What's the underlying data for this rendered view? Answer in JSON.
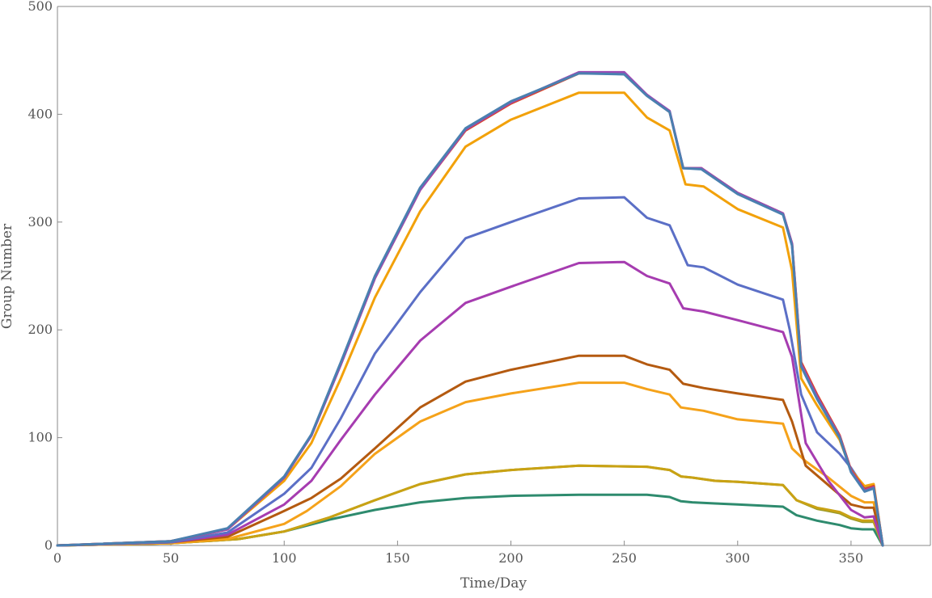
{
  "chart_data": {
    "type": "line",
    "title": "",
    "xlabel": "Time/Day",
    "ylabel": "Group Number",
    "xlim": [
      0,
      385
    ],
    "ylim": [
      0,
      500
    ],
    "xticks": [
      0,
      50,
      100,
      150,
      200,
      250,
      300,
      350
    ],
    "yticks": [
      0,
      100,
      200,
      300,
      400,
      500
    ],
    "frame": "top-left-right-bottom",
    "grid": false,
    "legend": "none",
    "series": [
      {
        "color": "#2e8b6e",
        "points": [
          [
            0,
            0
          ],
          [
            50,
            2
          ],
          [
            80,
            6
          ],
          [
            100,
            13
          ],
          [
            120,
            24
          ],
          [
            140,
            33
          ],
          [
            160,
            40
          ],
          [
            180,
            44
          ],
          [
            200,
            46
          ],
          [
            230,
            47
          ],
          [
            260,
            47
          ],
          [
            270,
            45
          ],
          [
            275,
            41
          ],
          [
            280,
            40
          ],
          [
            290,
            39
          ],
          [
            300,
            38
          ],
          [
            320,
            36
          ],
          [
            326,
            28
          ],
          [
            335,
            23
          ],
          [
            345,
            19
          ],
          [
            350,
            16
          ],
          [
            355,
            15
          ],
          [
            360,
            15
          ],
          [
            364,
            0
          ]
        ]
      },
      {
        "color": "#9a9a28",
        "points": [
          [
            0,
            0
          ],
          [
            50,
            2
          ],
          [
            80,
            6
          ],
          [
            100,
            13
          ],
          [
            120,
            26
          ],
          [
            140,
            42
          ],
          [
            160,
            57
          ],
          [
            180,
            66
          ],
          [
            200,
            70
          ],
          [
            230,
            74
          ],
          [
            260,
            73
          ],
          [
            270,
            70
          ],
          [
            275,
            64
          ],
          [
            280,
            63
          ],
          [
            290,
            60
          ],
          [
            300,
            59
          ],
          [
            320,
            56
          ],
          [
            326,
            42
          ],
          [
            335,
            34
          ],
          [
            345,
            30
          ],
          [
            350,
            25
          ],
          [
            355,
            22
          ],
          [
            360,
            22
          ],
          [
            364,
            0
          ]
        ]
      },
      {
        "color": "#c9a214",
        "points": [
          [
            0,
            0
          ],
          [
            50,
            2
          ],
          [
            80,
            6
          ],
          [
            100,
            13
          ],
          [
            120,
            26
          ],
          [
            140,
            42
          ],
          [
            160,
            57
          ],
          [
            180,
            66
          ],
          [
            200,
            70
          ],
          [
            230,
            74
          ],
          [
            260,
            73
          ],
          [
            270,
            70
          ],
          [
            275,
            64
          ],
          [
            280,
            63
          ],
          [
            290,
            60
          ],
          [
            300,
            59
          ],
          [
            320,
            56
          ],
          [
            326,
            42
          ],
          [
            335,
            35
          ],
          [
            345,
            31
          ],
          [
            350,
            26
          ],
          [
            355,
            23
          ],
          [
            360,
            23
          ],
          [
            364,
            0
          ]
        ]
      },
      {
        "color": "#f5a21a",
        "points": [
          [
            0,
            0
          ],
          [
            50,
            2
          ],
          [
            75,
            6
          ],
          [
            100,
            20
          ],
          [
            110,
            32
          ],
          [
            125,
            55
          ],
          [
            140,
            85
          ],
          [
            160,
            115
          ],
          [
            180,
            133
          ],
          [
            200,
            141
          ],
          [
            230,
            151
          ],
          [
            250,
            151
          ],
          [
            260,
            145
          ],
          [
            270,
            140
          ],
          [
            275,
            128
          ],
          [
            285,
            125
          ],
          [
            300,
            117
          ],
          [
            320,
            113
          ],
          [
            324,
            90
          ],
          [
            330,
            78
          ],
          [
            340,
            63
          ],
          [
            350,
            46
          ],
          [
            356,
            40
          ],
          [
            360,
            40
          ],
          [
            364,
            0
          ]
        ]
      },
      {
        "color": "#b45a10",
        "points": [
          [
            0,
            0
          ],
          [
            50,
            3
          ],
          [
            75,
            8
          ],
          [
            100,
            32
          ],
          [
            112,
            44
          ],
          [
            125,
            62
          ],
          [
            140,
            90
          ],
          [
            160,
            128
          ],
          [
            180,
            152
          ],
          [
            200,
            163
          ],
          [
            230,
            176
          ],
          [
            250,
            176
          ],
          [
            260,
            168
          ],
          [
            270,
            163
          ],
          [
            276,
            150
          ],
          [
            285,
            146
          ],
          [
            300,
            141
          ],
          [
            320,
            135
          ],
          [
            324,
            115
          ],
          [
            330,
            74
          ],
          [
            340,
            56
          ],
          [
            350,
            38
          ],
          [
            356,
            35
          ],
          [
            360,
            35
          ],
          [
            364,
            0
          ]
        ]
      },
      {
        "color": "#a63cb0",
        "points": [
          [
            0,
            0
          ],
          [
            50,
            3
          ],
          [
            75,
            10
          ],
          [
            100,
            38
          ],
          [
            112,
            60
          ],
          [
            125,
            98
          ],
          [
            140,
            140
          ],
          [
            160,
            190
          ],
          [
            180,
            225
          ],
          [
            200,
            240
          ],
          [
            230,
            262
          ],
          [
            250,
            263
          ],
          [
            260,
            250
          ],
          [
            270,
            243
          ],
          [
            276,
            220
          ],
          [
            285,
            217
          ],
          [
            300,
            209
          ],
          [
            320,
            198
          ],
          [
            324,
            175
          ],
          [
            330,
            95
          ],
          [
            340,
            60
          ],
          [
            350,
            33
          ],
          [
            356,
            26
          ],
          [
            360,
            27
          ],
          [
            364,
            0
          ]
        ]
      },
      {
        "color": "#5b6fc6",
        "points": [
          [
            0,
            0
          ],
          [
            50,
            3
          ],
          [
            75,
            12
          ],
          [
            100,
            48
          ],
          [
            112,
            72
          ],
          [
            125,
            118
          ],
          [
            140,
            178
          ],
          [
            160,
            235
          ],
          [
            180,
            285
          ],
          [
            200,
            300
          ],
          [
            230,
            322
          ],
          [
            250,
            323
          ],
          [
            260,
            304
          ],
          [
            270,
            297
          ],
          [
            278,
            260
          ],
          [
            285,
            258
          ],
          [
            300,
            242
          ],
          [
            320,
            228
          ],
          [
            323,
            200
          ],
          [
            328,
            140
          ],
          [
            335,
            105
          ],
          [
            345,
            85
          ],
          [
            350,
            72
          ],
          [
            356,
            53
          ],
          [
            360,
            55
          ],
          [
            364,
            0
          ]
        ]
      },
      {
        "color": "#f2a10a",
        "points": [
          [
            0,
            0
          ],
          [
            50,
            4
          ],
          [
            75,
            15
          ],
          [
            100,
            60
          ],
          [
            112,
            95
          ],
          [
            125,
            155
          ],
          [
            140,
            230
          ],
          [
            160,
            310
          ],
          [
            180,
            370
          ],
          [
            200,
            395
          ],
          [
            230,
            420
          ],
          [
            250,
            420
          ],
          [
            260,
            397
          ],
          [
            270,
            385
          ],
          [
            277,
            335
          ],
          [
            285,
            333
          ],
          [
            300,
            312
          ],
          [
            320,
            295
          ],
          [
            324,
            255
          ],
          [
            328,
            155
          ],
          [
            335,
            130
          ],
          [
            345,
            98
          ],
          [
            350,
            70
          ],
          [
            356,
            55
          ],
          [
            360,
            57
          ],
          [
            364,
            0
          ]
        ]
      },
      {
        "color": "#d8442a",
        "points": [
          [
            0,
            0
          ],
          [
            50,
            4
          ],
          [
            75,
            15
          ],
          [
            100,
            63
          ],
          [
            112,
            102
          ],
          [
            125,
            168
          ],
          [
            140,
            248
          ],
          [
            160,
            330
          ],
          [
            180,
            385
          ],
          [
            200,
            410
          ],
          [
            230,
            438
          ],
          [
            250,
            438
          ],
          [
            260,
            418
          ],
          [
            270,
            402
          ],
          [
            276,
            350
          ],
          [
            284,
            350
          ],
          [
            300,
            327
          ],
          [
            320,
            308
          ],
          [
            324,
            280
          ],
          [
            328,
            170
          ],
          [
            335,
            140
          ],
          [
            345,
            102
          ],
          [
            350,
            70
          ],
          [
            356,
            52
          ],
          [
            360,
            55
          ],
          [
            364,
            0
          ]
        ]
      },
      {
        "color": "#9a4ab4",
        "points": [
          [
            0,
            0
          ],
          [
            50,
            4
          ],
          [
            75,
            15
          ],
          [
            100,
            63
          ],
          [
            112,
            102
          ],
          [
            125,
            168
          ],
          [
            140,
            248
          ],
          [
            160,
            330
          ],
          [
            180,
            386
          ],
          [
            200,
            411
          ],
          [
            230,
            439
          ],
          [
            250,
            439
          ],
          [
            260,
            418
          ],
          [
            270,
            403
          ],
          [
            276,
            350
          ],
          [
            284,
            350
          ],
          [
            300,
            327
          ],
          [
            320,
            308
          ],
          [
            324,
            280
          ],
          [
            328,
            168
          ],
          [
            335,
            138
          ],
          [
            345,
            101
          ],
          [
            350,
            69
          ],
          [
            356,
            51
          ],
          [
            360,
            54
          ],
          [
            364,
            0
          ]
        ]
      },
      {
        "color": "#4a80b0",
        "points": [
          [
            0,
            0
          ],
          [
            50,
            4
          ],
          [
            75,
            16
          ],
          [
            100,
            64
          ],
          [
            112,
            103
          ],
          [
            125,
            170
          ],
          [
            140,
            250
          ],
          [
            160,
            332
          ],
          [
            180,
            387
          ],
          [
            200,
            412
          ],
          [
            230,
            438
          ],
          [
            250,
            437
          ],
          [
            260,
            417
          ],
          [
            270,
            402
          ],
          [
            276,
            350
          ],
          [
            284,
            349
          ],
          [
            300,
            326
          ],
          [
            320,
            307
          ],
          [
            324,
            278
          ],
          [
            328,
            166
          ],
          [
            335,
            136
          ],
          [
            345,
            100
          ],
          [
            350,
            68
          ],
          [
            356,
            50
          ],
          [
            360,
            53
          ],
          [
            364,
            0
          ]
        ]
      }
    ]
  }
}
